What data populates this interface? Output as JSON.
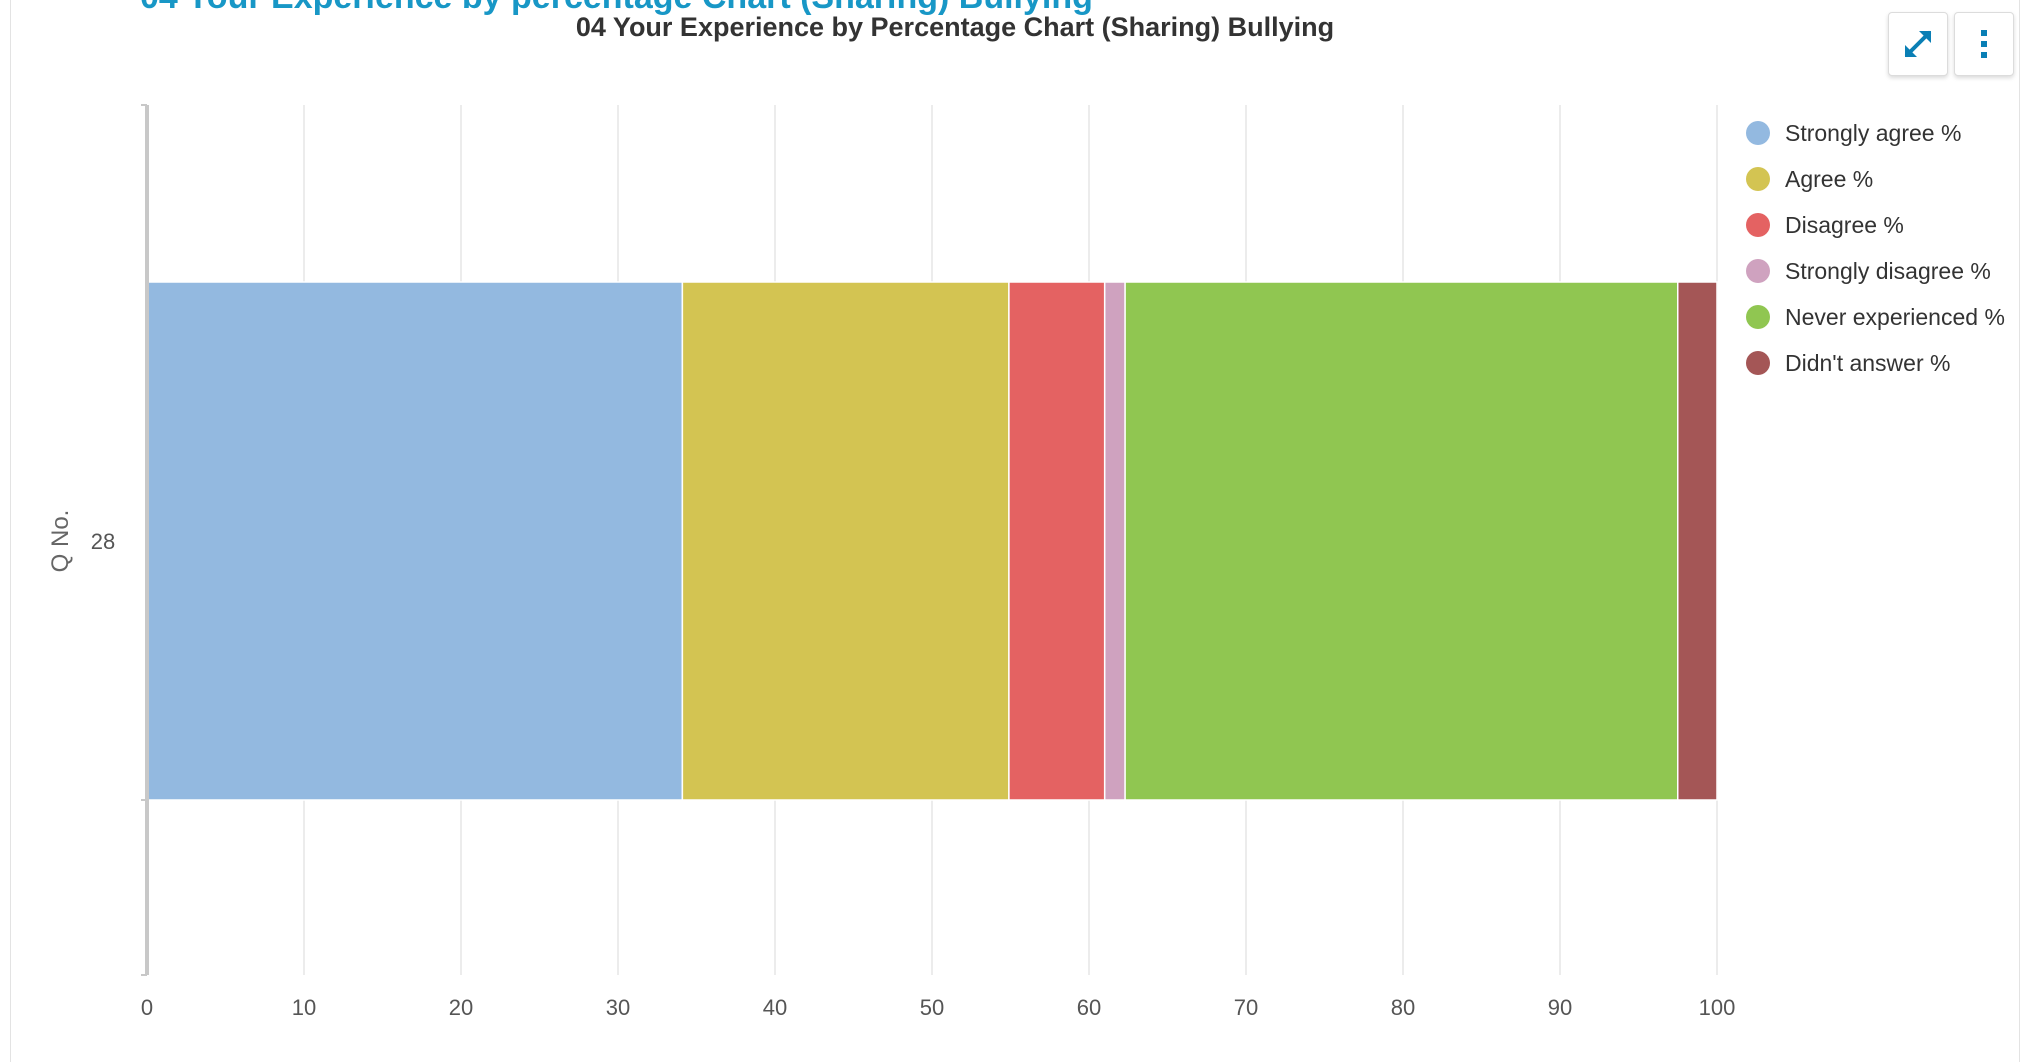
{
  "header": {
    "title": "04 Your Experience by percentage Chart (Sharing) Bullying"
  },
  "toolbar": {
    "expand_icon": "expand-arrows-icon",
    "menu_icon": "vertical-ellipsis-icon",
    "accent_color": "#0a7fb5"
  },
  "chart_data": {
    "type": "bar",
    "orientation": "horizontal",
    "stacked": true,
    "title": "04 Your Experience by Percentage Chart (Sharing) Bullying",
    "xlabel": "",
    "ylabel": "Q No.",
    "categories": [
      "28"
    ],
    "xlim": [
      0,
      100
    ],
    "xticks": [
      0,
      10,
      20,
      30,
      40,
      50,
      60,
      70,
      80,
      90,
      100
    ],
    "grid": true,
    "legend_position": "top-right",
    "series": [
      {
        "name": "Strongly agree %",
        "color": "#93b9e0",
        "values": [
          34.1
        ]
      },
      {
        "name": "Agree %",
        "color": "#d3c452",
        "values": [
          20.8
        ]
      },
      {
        "name": "Disagree %",
        "color": "#e46262",
        "values": [
          6.1
        ]
      },
      {
        "name": "Strongly disagree %",
        "color": "#cfa2bf",
        "values": [
          1.3
        ]
      },
      {
        "name": "Never experienced %",
        "color": "#90c651",
        "values": [
          35.2
        ]
      },
      {
        "name": "Didn't answer %",
        "color": "#a45656",
        "values": [
          2.5
        ]
      }
    ]
  }
}
